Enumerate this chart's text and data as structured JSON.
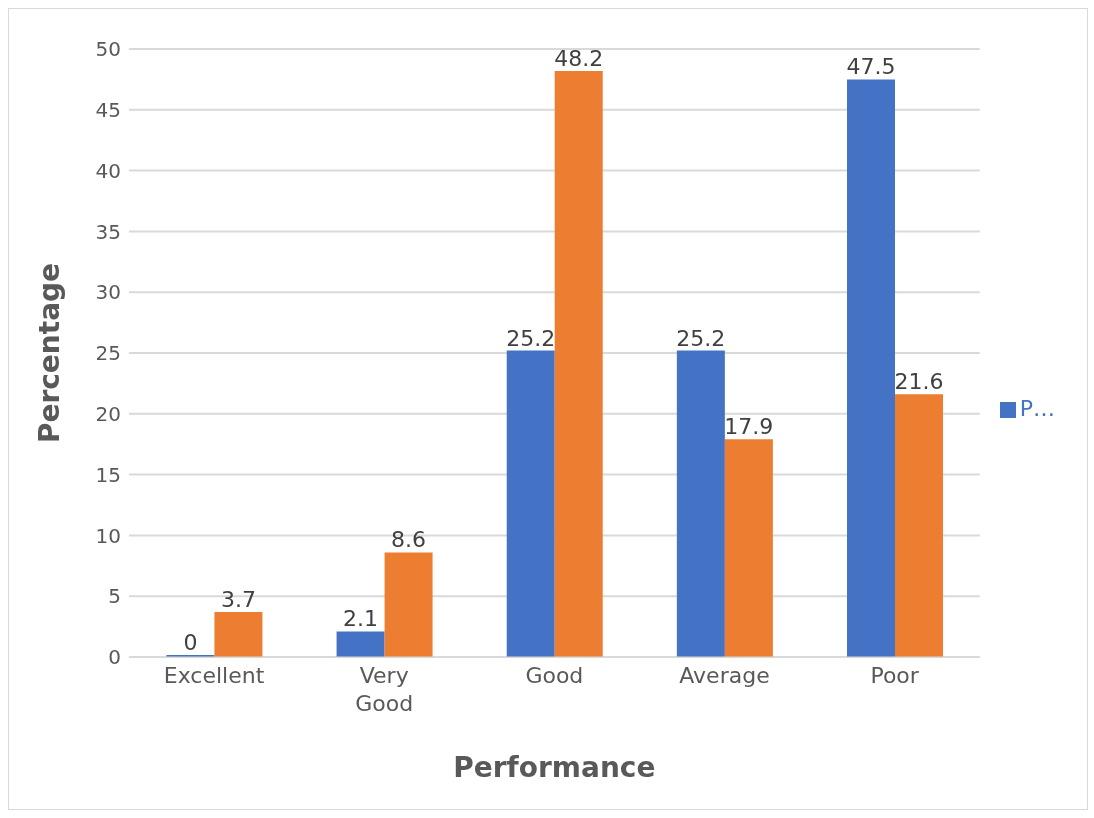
{
  "chart_data": {
    "type": "bar",
    "xlabel": "Performance",
    "ylabel": "Percentage",
    "categories": [
      "Excellent",
      "Very Good",
      "Good",
      "Average",
      "Poor"
    ],
    "series": [
      {
        "name": "P…",
        "color": "#4472c4",
        "values": [
          0,
          2.1,
          25.2,
          25.2,
          47.5
        ]
      },
      {
        "color": "#ed7d31",
        "values": [
          3.7,
          8.6,
          48.2,
          17.9,
          21.6
        ]
      }
    ],
    "ylim": [
      0,
      50
    ],
    "yticks": [
      0,
      5,
      10,
      15,
      20,
      25,
      30,
      35,
      40,
      45,
      50
    ],
    "grid": "y",
    "legend": "right",
    "data_labels": true
  }
}
